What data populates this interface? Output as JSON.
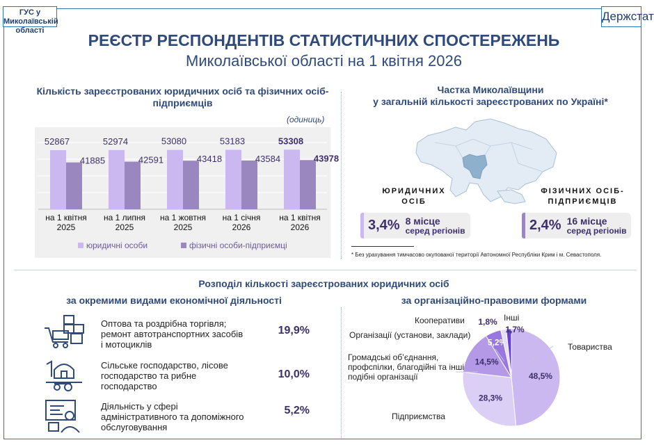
{
  "header": {
    "org": "ГУС у Миколаївській області",
    "brand": "Держстат",
    "title": "РЕЄСТР РЕСПОНДЕНТІВ СТАТИСТИЧНИХ СПОСТЕРЕЖЕНЬ",
    "subtitle": "Миколаївської області на 1 квітня 2026"
  },
  "chart_data": [
    {
      "type": "bar",
      "title": "Кількість зареєстрованих юридичних осіб та фізичних осіб-підприємців",
      "unit": "(одиниць)",
      "categories": [
        [
          "на 1 квітня",
          "2025"
        ],
        [
          "на 1 липня",
          "2025"
        ],
        [
          "на 1 жовтня",
          "2025"
        ],
        [
          "на 1 січня",
          "2026"
        ],
        [
          "на 1 квітня",
          "2026"
        ]
      ],
      "series": [
        {
          "name": "юридичні особи",
          "values": [
            52867,
            52974,
            53080,
            53183,
            53308
          ],
          "color": "#cbb8f0"
        },
        {
          "name": "фізичні особи-підприємці",
          "values": [
            41885,
            42591,
            43418,
            43584,
            43978
          ],
          "color": "#9b87c0"
        }
      ],
      "ylim": [
        0,
        70000
      ],
      "grid": true,
      "legend": "bottom"
    },
    {
      "type": "pie",
      "title": "за організаційно-правовими формами",
      "slices": [
        {
          "label": "Товариства",
          "value": 48.5,
          "text": "48,5%",
          "color": "#cbb8f0"
        },
        {
          "label": "Підприємства",
          "value": 28.3,
          "text": "28,3%",
          "color": "#dccff5"
        },
        {
          "label": "Громадські об’єднання, профспілки, благодійні та інші подібні організації",
          "value": 14.5,
          "text": "14,5%",
          "color": "#b49ae6"
        },
        {
          "label": "Організації (установи, заклади)",
          "value": 5.2,
          "text": "5,2%",
          "color": "#9a77e0"
        },
        {
          "label": "Кооперативи",
          "value": 1.8,
          "text": "1,8%",
          "color": "#e6def7"
        },
        {
          "label": "Інші",
          "value": 1.7,
          "text": "1,7%",
          "color": "#6a3fd8"
        }
      ]
    }
  ],
  "share": {
    "title1": "Частка Миколаївщини",
    "title2": "у загальній кількості зареєстрованих по Україні*",
    "legal": {
      "caption1": "ЮРИДИЧНИХ",
      "caption2": "ОСІБ",
      "pct": "3,4%",
      "rank": "8 місце",
      "rank_sub": "серед регіонів",
      "color": "#cbb8f0"
    },
    "fop": {
      "caption1": "ФІЗИЧНИХ ОСІБ-",
      "caption2": "ПІДПРИЄМЦІВ",
      "pct": "2,4%",
      "rank": "16 місце",
      "rank_sub": "серед регіонів",
      "color": "#9b87c0"
    },
    "footnote": "* Без урахування тимчасово окупованої території Автономної Республіки Крим і м. Севастополя."
  },
  "distribution": {
    "title": "Розподіл кількості зареєстрованих юридичних осіб",
    "left_title": "за окремими видами економічної діяльності",
    "right_title": "за організаційно-правовими формами",
    "activities": [
      {
        "label": "Оптова та роздрібна торгівля; ремонт автотранспортних засобів і мотоциклів",
        "pct": "19,9%",
        "icon": "trade-icon"
      },
      {
        "label": "Сільське господарство, лісове господарство та рибне господарство",
        "pct": "10,0%",
        "icon": "farm-icon"
      },
      {
        "label": "Діяльність у сфері адміністративного та допоміжного обслуговування",
        "pct": "5,2%",
        "icon": "office-worker-icon"
      }
    ]
  }
}
